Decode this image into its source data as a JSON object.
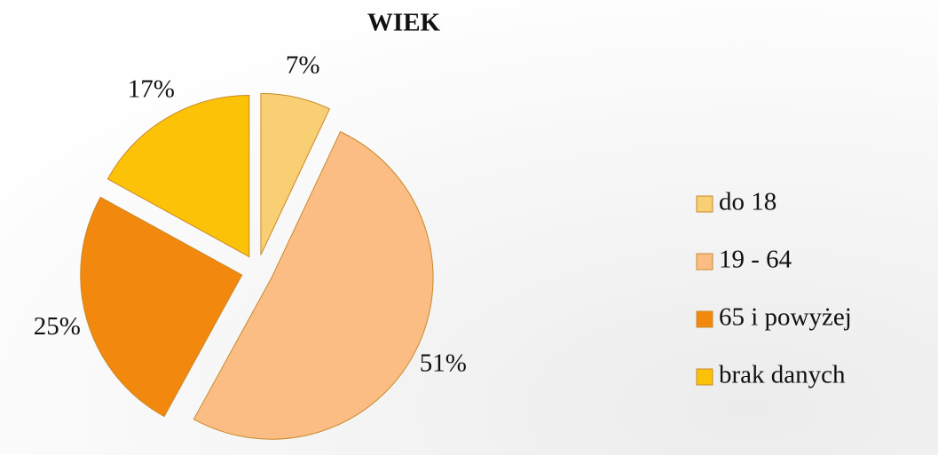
{
  "chart_data": {
    "type": "pie",
    "title": "WIEK",
    "categories": [
      "do 18",
      "19 - 64",
      "65 i powyżej",
      "brak danych"
    ],
    "values": [
      7,
      51,
      25,
      17
    ],
    "value_labels": [
      "7%",
      "51%",
      "25%",
      "17%"
    ],
    "colors": [
      "#f8cf72",
      "#fbbd84",
      "#f2880e",
      "#fcc208"
    ],
    "legend": "right"
  }
}
